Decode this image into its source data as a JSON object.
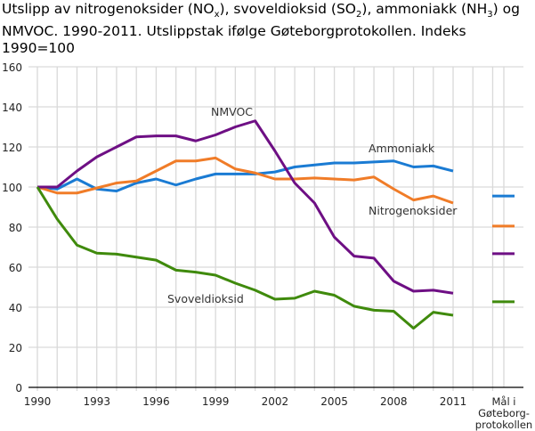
{
  "chart_data": {
    "type": "line",
    "title_parts": [
      "Utslipp av nitrogenoksider (NO",
      "x",
      "), svoveldioksid (SO",
      "2",
      "), ammoniakk (NH",
      "3",
      ") og",
      "NMVOC. 1990-2011. Utslippstak ifølge Gøteborgprotokollen. Indeks 1990=100"
    ],
    "x": [
      1990,
      1991,
      1992,
      1993,
      1994,
      1995,
      1996,
      1997,
      1998,
      1999,
      2000,
      2001,
      2002,
      2003,
      2004,
      2005,
      2006,
      2007,
      2008,
      2009,
      2010,
      2011
    ],
    "x_ticks": [
      "1990",
      "1993",
      "1996",
      "1999",
      "2002",
      "2005",
      "2008",
      "2011"
    ],
    "target_label": [
      "Mål i",
      "Gøteborg-",
      "protokollen"
    ],
    "y_ticks": [
      "0",
      "20",
      "40",
      "60",
      "80",
      "100",
      "120",
      "140",
      "160"
    ],
    "ylim": [
      0,
      160
    ],
    "grid": true,
    "series": [
      {
        "name": "Ammoniakk",
        "color": "#1a7bd3",
        "values": [
          100,
          99,
          104,
          99,
          98,
          102,
          104,
          101,
          104,
          106.5,
          106.5,
          106.5,
          107.5,
          110,
          111,
          112,
          112,
          112.5,
          113,
          110,
          110.5,
          108
        ],
        "target": 95.5
      },
      {
        "name": "Nitrogenoksider",
        "color": "#f07c28",
        "values": [
          100,
          97,
          97,
          99.5,
          102,
          103,
          108,
          113,
          113,
          114.5,
          109,
          107,
          104,
          104,
          104.5,
          104,
          103.5,
          105,
          99,
          93.5,
          95.5,
          92
        ],
        "target": 80.5
      },
      {
        "name": "NMVOC",
        "color": "#6e0f84",
        "values": [
          100,
          100,
          108,
          115,
          120,
          125,
          125.5,
          125.5,
          123,
          126,
          130,
          133,
          118,
          102,
          92,
          75,
          65.5,
          64.5,
          53,
          48,
          48.5,
          47
        ],
        "target": 66.7
      },
      {
        "name": "Svoveldioksid",
        "color": "#3f8a0c",
        "values": [
          100,
          84,
          71,
          67,
          66.5,
          65,
          63.5,
          58.5,
          57.5,
          56,
          52,
          48.5,
          44,
          44.5,
          48,
          46,
          40.5,
          38.5,
          38,
          29.5,
          37.5,
          36
        ],
        "target": 42.7
      }
    ]
  }
}
